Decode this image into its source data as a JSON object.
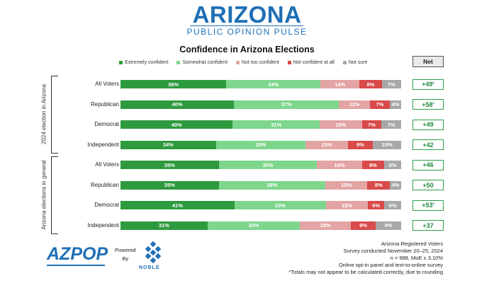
{
  "brand": {
    "title": "ARIZONA",
    "subtitle": "PUBLIC OPINION PULSE"
  },
  "net_header": "Net",
  "legend_colors": [
    "#2e9a3e",
    "#7dd68c",
    "#e3a4a4",
    "#d94a4a",
    "#a8a8a8"
  ],
  "chart_data": {
    "type": "bar",
    "orientation": "horizontal-stacked-100",
    "title": "Confidence in Arizona Elections",
    "legend": [
      "Extremely confident",
      "Somewhat confident",
      "Not too confident",
      "Not confident at all",
      "Not sure"
    ],
    "groups": [
      {
        "label": "2024 election in Arizona",
        "rows": [
          {
            "label": "All Voters",
            "values": [
              38,
              34,
              14,
              8,
              7
            ],
            "value_labels": [
              "38%",
              "34%",
              "14%",
              "8%",
              "7%"
            ],
            "net": "+49",
            "net_mark": "*"
          },
          {
            "label": "Republican",
            "values": [
              40,
              37,
              11,
              7,
              4
            ],
            "value_labels": [
              "40%",
              "37%",
              "11%",
              "7%",
              "4%"
            ],
            "net": "+58",
            "net_mark": "*"
          },
          {
            "label": "Democrat",
            "values": [
              40,
              31,
              15,
              7,
              7
            ],
            "value_labels": [
              "40%",
              "31%",
              "15%",
              "7%",
              "7%"
            ],
            "net": "+49",
            "net_mark": ""
          },
          {
            "label": "Independent",
            "values": [
              34,
              32,
              15,
              9,
              10
            ],
            "value_labels": [
              "34%",
              "32%",
              "15%",
              "9%",
              "10%"
            ],
            "net": "+42",
            "net_mark": ""
          }
        ]
      },
      {
        "label": "Arizona elections in general",
        "rows": [
          {
            "label": "All Voters",
            "values": [
              35,
              35,
              16,
              8,
              6
            ],
            "value_labels": [
              "35%",
              "35%",
              "16%",
              "8%",
              "6%"
            ],
            "net": "+46",
            "net_mark": ""
          },
          {
            "label": "Republican",
            "values": [
              35,
              38,
              15,
              8,
              4
            ],
            "value_labels": [
              "35%",
              "38%",
              "15%",
              "8%",
              "4%"
            ],
            "net": "+50",
            "net_mark": ""
          },
          {
            "label": "Democrat",
            "values": [
              41,
              33,
              15,
              6,
              6
            ],
            "value_labels": [
              "41%",
              "33%",
              "15%",
              "6%",
              "6%"
            ],
            "net": "+53",
            "net_mark": "*"
          },
          {
            "label": "Independent",
            "values": [
              31,
              33,
              18,
              9,
              9
            ],
            "value_labels": [
              "31%",
              "33%",
              "18%",
              "9%",
              "9%"
            ],
            "net": "+37",
            "net_mark": ""
          }
        ]
      }
    ]
  },
  "footer": {
    "logo": "AZPOP",
    "powered_by_1": "Powered",
    "powered_by_2": "By",
    "noble": "NOBLE",
    "notes": [
      "Arizona Registered Voters",
      "Survey conducted November 20–25, 2024",
      "n = 988, MoE ± 3.10%",
      "Online opt-in panel and text-to-online survey",
      "*Totals may not appear to be calculated correctly, due to rounding"
    ]
  }
}
